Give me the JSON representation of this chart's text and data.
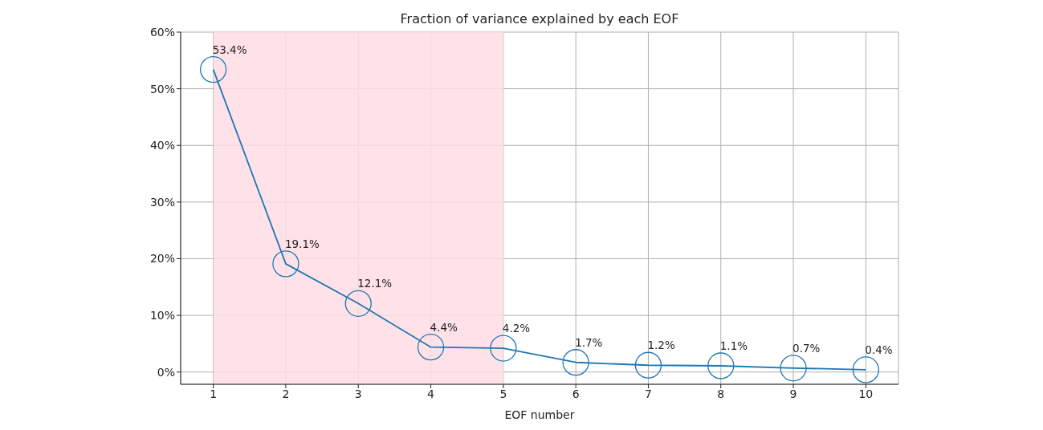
{
  "chart_data": {
    "type": "line",
    "title": "Fraction of variance explained by each EOF",
    "xlabel": "EOF number",
    "x": [
      1,
      2,
      3,
      4,
      5,
      6,
      7,
      8,
      9,
      10
    ],
    "series": [
      {
        "color": "#1f77b4",
        "values": [
          53.4,
          19.1,
          12.1,
          4.4,
          4.2,
          1.7,
          1.2,
          1.1,
          0.7,
          0.4
        ],
        "value_labels": [
          "53.4%",
          "19.1%",
          "12.1%",
          "4.4%",
          "4.2%",
          "1.7%",
          "1.2%",
          "1.1%",
          "0.7%",
          "0.4%"
        ]
      }
    ],
    "xlim": [
      0.55,
      10.45
    ],
    "xticks": [
      1,
      2,
      3,
      4,
      5,
      6,
      7,
      8,
      9,
      10
    ],
    "ylim": [
      -2.16,
      60
    ],
    "yticks": [
      {
        "value": 0,
        "label": "0%"
      },
      {
        "value": 10,
        "label": "10%"
      },
      {
        "value": 20,
        "label": "20%"
      },
      {
        "value": 30,
        "label": "30%"
      },
      {
        "value": 40,
        "label": "40%"
      },
      {
        "value": 50,
        "label": "50%"
      },
      {
        "value": 60,
        "label": "60%"
      }
    ],
    "bands": [
      {
        "axis": "x",
        "from": 1,
        "to": 5,
        "color": "#ffdde3"
      }
    ],
    "grid": true,
    "marker": "circle",
    "line_style": "solid"
  }
}
